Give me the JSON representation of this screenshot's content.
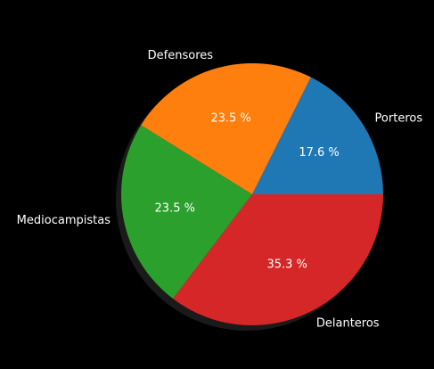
{
  "chart_data": {
    "type": "pie",
    "title": "",
    "slices": [
      {
        "label": "Porteros",
        "value": 17.6,
        "pct_label": "17.6 %",
        "color": "#1f77b4"
      },
      {
        "label": "Defensores",
        "value": 23.5,
        "pct_label": "23.5 %",
        "color": "#ff7f0e"
      },
      {
        "label": "Mediocampistas",
        "value": 23.5,
        "pct_label": "23.5 %",
        "color": "#2ca02c"
      },
      {
        "label": "Delanteros",
        "value": 35.3,
        "pct_label": "35.3 %",
        "color": "#d62728"
      }
    ],
    "start_angle_deg": 0,
    "direction": "counterclockwise",
    "shadow": true,
    "background": "#000000",
    "text_color": "#ffffff"
  }
}
